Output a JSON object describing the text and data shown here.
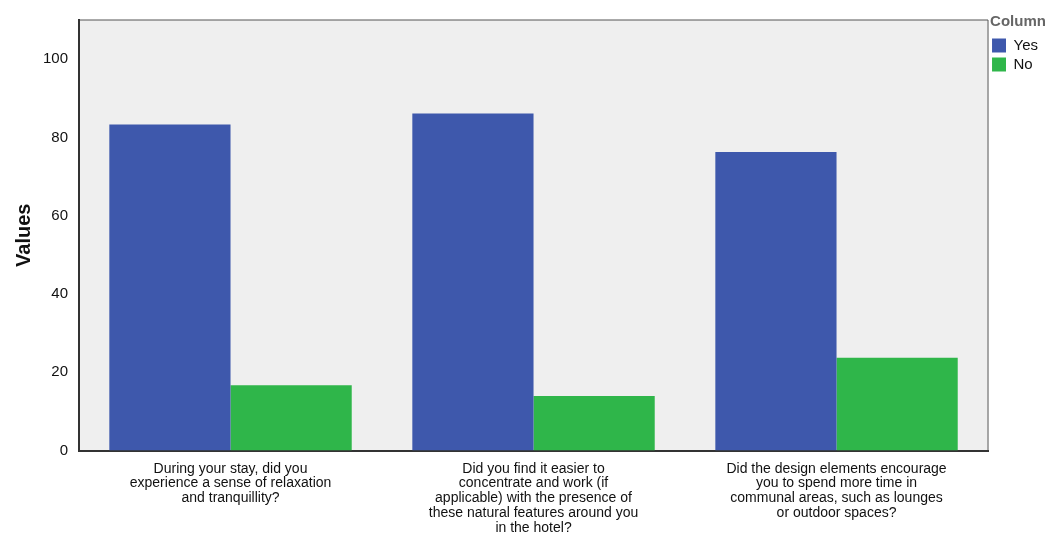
{
  "chart_data": {
    "type": "bar",
    "ylabel": "Values",
    "legend_title": "Column",
    "legend": "top right",
    "grid": false,
    "categories": [
      "During your stay, did you experience a sense of relaxation and tranquillity?",
      "Did you find it easier to concentrate and work (if applicable) with the presence of these natural features around you in the hotel?",
      "Did the design elements encourage you to spend more time in communal areas, such as lounges or outdoor spaces?"
    ],
    "series": [
      {
        "name": "Yes",
        "color": "#3e58ac",
        "values": [
          83.3,
          86.1,
          76.3
        ]
      },
      {
        "name": "No",
        "color": "#2fb64a",
        "values": [
          16.7,
          13.9,
          23.7
        ]
      }
    ],
    "ylim": [
      0,
      110
    ],
    "yticks": [
      0,
      20,
      40,
      60,
      80,
      100
    ]
  }
}
